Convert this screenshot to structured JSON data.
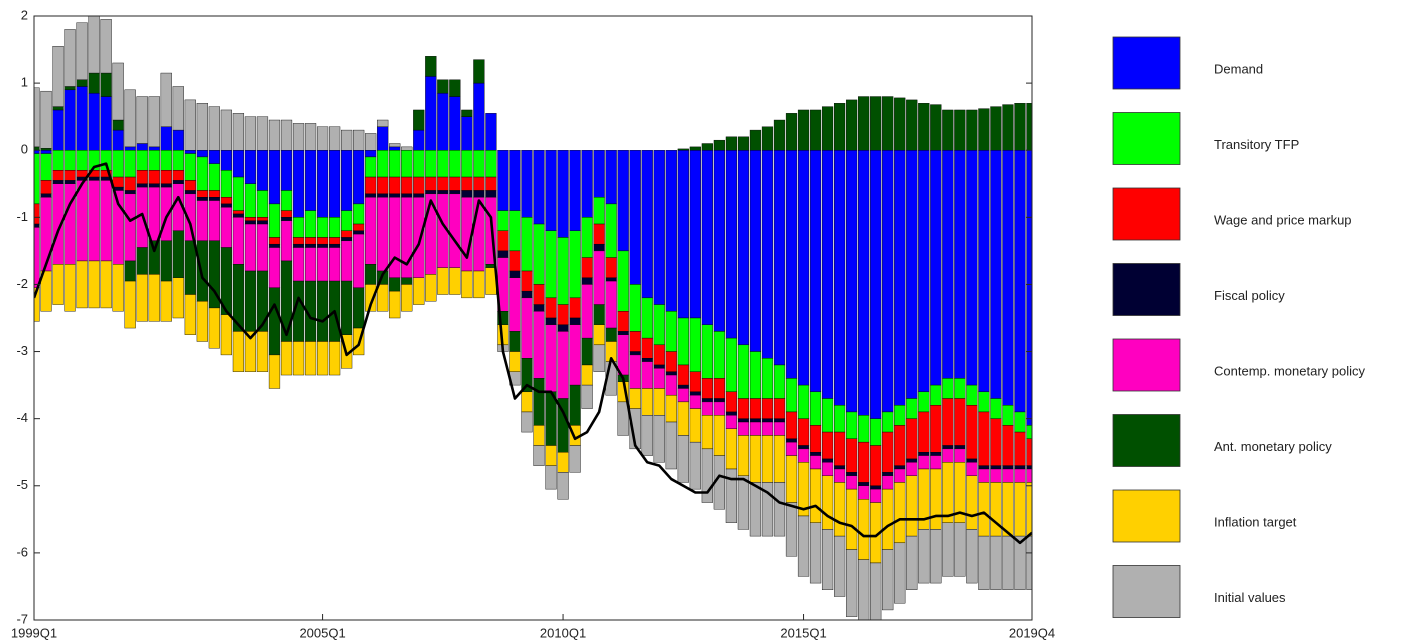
{
  "chart_data": {
    "type": "stacked_bar",
    "categories": [
      "1999Q1",
      null,
      null,
      null,
      null,
      null,
      null,
      null,
      null,
      null,
      null,
      null,
      null,
      null,
      null,
      null,
      null,
      null,
      null,
      null,
      null,
      null,
      null,
      null,
      "2005Q1",
      null,
      null,
      null,
      null,
      null,
      null,
      null,
      null,
      null,
      null,
      null,
      null,
      null,
      null,
      null,
      null,
      null,
      null,
      null,
      "2010Q1",
      null,
      null,
      null,
      null,
      null,
      null,
      null,
      null,
      null,
      null,
      null,
      null,
      null,
      null,
      null,
      null,
      null,
      null,
      null,
      "2015Q1",
      null,
      null,
      null,
      null,
      null,
      null,
      null,
      null,
      null,
      null,
      null,
      null,
      null,
      null,
      null,
      null,
      null,
      null,
      "2019Q4"
    ],
    "series": [
      {
        "name": "Demand",
        "color": "#0000ff",
        "values": [
          -0.05,
          -0.05,
          0.6,
          0.9,
          0.95,
          0.85,
          0.8,
          0.3,
          0.05,
          0.1,
          0.05,
          0.35,
          0.3,
          -0.05,
          -0.1,
          -0.2,
          -0.3,
          -0.4,
          -0.5,
          -0.6,
          -0.8,
          -0.6,
          -1.0,
          -0.9,
          -1.0,
          -1.0,
          -0.9,
          -0.8,
          -0.1,
          0.35,
          0.05,
          0.0,
          0.3,
          1.1,
          0.85,
          0.8,
          0.5,
          1.0,
          0.55,
          -0.9,
          -0.9,
          -1.0,
          -1.1,
          -1.2,
          -1.3,
          -1.2,
          -1.0,
          -0.7,
          -0.8,
          -1.5,
          -2.0,
          -2.2,
          -2.3,
          -2.4,
          -2.5,
          -2.5,
          -2.6,
          -2.7,
          -2.8,
          -2.9,
          -3.0,
          -3.1,
          -3.2,
          -3.4,
          -3.5,
          -3.6,
          -3.7,
          -3.8,
          -3.9,
          -3.95,
          -4.0,
          -3.9,
          -3.8,
          -3.7,
          -3.6,
          -3.5,
          -3.4,
          -3.4,
          -3.5,
          -3.6,
          -3.7,
          -3.8,
          -3.9,
          -4.1
        ]
      },
      {
        "name": "Transitory TFP",
        "color": "#00ff00",
        "values": [
          -0.75,
          -0.4,
          -0.3,
          -0.3,
          -0.3,
          -0.3,
          -0.3,
          -0.4,
          -0.4,
          -0.3,
          -0.3,
          -0.3,
          -0.3,
          -0.4,
          -0.5,
          -0.4,
          -0.4,
          -0.5,
          -0.5,
          -0.4,
          -0.5,
          -0.3,
          -0.3,
          -0.4,
          -0.3,
          -0.3,
          -0.3,
          -0.3,
          -0.3,
          -0.4,
          -0.4,
          -0.4,
          -0.4,
          -0.4,
          -0.4,
          -0.4,
          -0.4,
          -0.4,
          -0.4,
          -0.3,
          -0.6,
          -0.8,
          -0.9,
          -1.0,
          -1.0,
          -1.0,
          -0.6,
          -0.4,
          -0.8,
          -0.9,
          -0.7,
          -0.6,
          -0.6,
          -0.6,
          -0.7,
          -0.8,
          -0.8,
          -0.7,
          -0.8,
          -0.8,
          -0.7,
          -0.6,
          -0.5,
          -0.5,
          -0.5,
          -0.5,
          -0.5,
          -0.4,
          -0.4,
          -0.4,
          -0.4,
          -0.3,
          -0.3,
          -0.3,
          -0.3,
          -0.3,
          -0.3,
          -0.3,
          -0.3,
          -0.3,
          -0.3,
          -0.3,
          -0.3,
          -0.2
        ]
      },
      {
        "name": "Wage and price markup",
        "color": "#ff0000",
        "values": [
          -0.3,
          -0.2,
          -0.15,
          -0.15,
          -0.1,
          -0.1,
          -0.1,
          -0.15,
          -0.2,
          -0.2,
          -0.2,
          -0.2,
          -0.15,
          -0.15,
          -0.1,
          -0.1,
          -0.1,
          -0.05,
          -0.05,
          -0.05,
          -0.1,
          -0.1,
          -0.1,
          -0.1,
          -0.1,
          -0.1,
          -0.1,
          -0.1,
          -0.25,
          -0.25,
          -0.25,
          -0.25,
          -0.25,
          -0.2,
          -0.2,
          -0.2,
          -0.2,
          -0.2,
          -0.2,
          -0.3,
          -0.3,
          -0.3,
          -0.3,
          -0.3,
          -0.3,
          -0.3,
          -0.3,
          -0.3,
          -0.3,
          -0.3,
          -0.3,
          -0.3,
          -0.3,
          -0.3,
          -0.3,
          -0.3,
          -0.3,
          -0.3,
          -0.3,
          -0.3,
          -0.3,
          -0.3,
          -0.3,
          -0.4,
          -0.4,
          -0.4,
          -0.4,
          -0.5,
          -0.5,
          -0.6,
          -0.6,
          -0.6,
          -0.6,
          -0.6,
          -0.6,
          -0.7,
          -0.7,
          -0.7,
          -0.8,
          -0.8,
          -0.7,
          -0.6,
          -0.5,
          -0.4
        ]
      },
      {
        "name": "Fiscal policy",
        "color": "#000033",
        "values": [
          -0.05,
          -0.05,
          -0.05,
          -0.05,
          -0.05,
          -0.05,
          -0.05,
          -0.05,
          -0.05,
          -0.05,
          -0.05,
          -0.05,
          -0.05,
          -0.05,
          -0.05,
          -0.05,
          -0.05,
          -0.05,
          -0.05,
          -0.05,
          -0.05,
          -0.05,
          -0.05,
          -0.05,
          -0.05,
          -0.05,
          -0.05,
          -0.05,
          -0.05,
          -0.05,
          -0.05,
          -0.05,
          -0.05,
          -0.05,
          -0.05,
          -0.05,
          -0.1,
          -0.1,
          -0.1,
          -0.1,
          -0.1,
          -0.1,
          -0.1,
          -0.1,
          -0.1,
          -0.1,
          -0.1,
          -0.1,
          -0.05,
          -0.05,
          -0.05,
          -0.05,
          -0.05,
          -0.05,
          -0.05,
          -0.05,
          -0.05,
          -0.05,
          -0.05,
          -0.05,
          -0.05,
          -0.05,
          -0.05,
          -0.05,
          -0.05,
          -0.05,
          -0.05,
          -0.05,
          -0.05,
          -0.05,
          -0.05,
          -0.05,
          -0.05,
          -0.05,
          -0.05,
          -0.05,
          -0.05,
          -0.05,
          -0.05,
          -0.05,
          -0.05,
          -0.05,
          -0.05,
          -0.05
        ]
      },
      {
        "name": "Contemp. monetary policy",
        "color": "#ff00c0",
        "values": [
          -0.9,
          -1.1,
          -1.2,
          -1.2,
          -1.2,
          -1.2,
          -1.2,
          -1.1,
          -1.0,
          -0.9,
          -0.8,
          -0.8,
          -0.7,
          -0.7,
          -0.6,
          -0.6,
          -0.6,
          -0.7,
          -0.7,
          -0.7,
          -0.6,
          -0.6,
          -0.5,
          -0.5,
          -0.5,
          -0.5,
          -0.6,
          -0.8,
          -1.0,
          -1.1,
          -1.2,
          -1.2,
          -1.2,
          -1.2,
          -1.1,
          -1.1,
          -1.1,
          -1.1,
          -1.0,
          -0.8,
          -0.8,
          -0.9,
          -1.0,
          -1.0,
          -1.0,
          -0.9,
          -0.8,
          -0.8,
          -0.7,
          -0.6,
          -0.5,
          -0.4,
          -0.3,
          -0.3,
          -0.2,
          -0.2,
          -0.2,
          -0.2,
          -0.2,
          -0.2,
          -0.2,
          -0.2,
          -0.2,
          -0.2,
          -0.2,
          -0.2,
          -0.2,
          -0.2,
          -0.2,
          -0.2,
          -0.2,
          -0.2,
          -0.2,
          -0.2,
          -0.2,
          -0.2,
          -0.2,
          -0.2,
          -0.2,
          -0.2,
          -0.2,
          -0.2,
          -0.2,
          -0.2
        ]
      },
      {
        "name": "Ant. monetary policy",
        "color": "#005000",
        "values": [
          0.05,
          0.03,
          0.05,
          0.05,
          0.1,
          0.3,
          0.35,
          0.15,
          -0.3,
          -0.4,
          -0.5,
          -0.6,
          -0.7,
          -0.8,
          -0.9,
          -1.0,
          -1.0,
          -1.0,
          -0.9,
          -0.9,
          -1.0,
          -1.2,
          -0.9,
          -0.9,
          -0.9,
          -0.9,
          -0.8,
          -0.6,
          -0.3,
          -0.2,
          -0.2,
          -0.1,
          0.3,
          0.3,
          0.2,
          0.25,
          0.1,
          0.35,
          -0.05,
          -0.2,
          -0.3,
          -0.5,
          -0.7,
          -0.8,
          -0.8,
          -0.6,
          -0.4,
          -0.3,
          -0.2,
          -0.1,
          0.0,
          0.0,
          0.0,
          0.0,
          0.02,
          0.05,
          0.1,
          0.15,
          0.2,
          0.2,
          0.3,
          0.35,
          0.45,
          0.55,
          0.6,
          0.6,
          0.65,
          0.7,
          0.75,
          0.8,
          0.8,
          0.8,
          0.78,
          0.75,
          0.7,
          0.68,
          0.6,
          0.6,
          0.6,
          0.62,
          0.65,
          0.68,
          0.7,
          0.7
        ]
      },
      {
        "name": "Inflation target",
        "color": "#ffd000",
        "values": [
          -0.5,
          -0.6,
          -0.6,
          -0.7,
          -0.7,
          -0.7,
          -0.7,
          -0.7,
          -0.7,
          -0.7,
          -0.7,
          -0.6,
          -0.6,
          -0.6,
          -0.6,
          -0.6,
          -0.6,
          -0.6,
          -0.6,
          -0.6,
          -0.5,
          -0.5,
          -0.5,
          -0.5,
          -0.5,
          -0.5,
          -0.5,
          -0.4,
          -0.4,
          -0.4,
          -0.4,
          -0.4,
          -0.4,
          -0.4,
          -0.4,
          -0.4,
          -0.4,
          -0.4,
          -0.4,
          -0.3,
          -0.3,
          -0.3,
          -0.3,
          -0.3,
          -0.3,
          -0.3,
          -0.3,
          -0.3,
          -0.3,
          -0.3,
          -0.3,
          -0.4,
          -0.4,
          -0.4,
          -0.5,
          -0.5,
          -0.5,
          -0.6,
          -0.6,
          -0.6,
          -0.7,
          -0.7,
          -0.7,
          -0.7,
          -0.8,
          -0.8,
          -0.8,
          -0.8,
          -0.9,
          -0.9,
          -0.9,
          -0.9,
          -0.9,
          -0.9,
          -0.9,
          -0.9,
          -0.9,
          -0.9,
          -0.8,
          -0.8,
          -0.8,
          -0.8,
          -0.8,
          -0.8
        ]
      },
      {
        "name": "Initial values",
        "color": "#b0b0b0",
        "values": [
          0.88,
          0.85,
          0.9,
          0.85,
          0.85,
          0.85,
          0.8,
          0.85,
          0.85,
          0.7,
          0.75,
          0.8,
          0.65,
          0.75,
          0.7,
          0.65,
          0.6,
          0.55,
          0.5,
          0.5,
          0.45,
          0.45,
          0.4,
          0.4,
          0.35,
          0.35,
          0.3,
          0.3,
          0.25,
          0.1,
          0.05,
          0.05,
          0.0,
          0.0,
          0.0,
          0.0,
          0.0,
          0.0,
          0.0,
          -0.1,
          -0.2,
          -0.3,
          -0.3,
          -0.35,
          -0.4,
          -0.4,
          -0.35,
          -0.4,
          -0.5,
          -0.5,
          -0.6,
          -0.6,
          -0.7,
          -0.7,
          -0.7,
          -0.7,
          -0.8,
          -0.8,
          -0.8,
          -0.8,
          -0.8,
          -0.8,
          -0.8,
          -0.8,
          -0.9,
          -0.9,
          -0.9,
          -0.9,
          -1.0,
          -1.0,
          -1.0,
          -0.9,
          -0.9,
          -0.8,
          -0.8,
          -0.8,
          -0.8,
          -0.8,
          -0.8,
          -0.8,
          -0.8,
          -0.8,
          -0.8,
          -0.8
        ]
      }
    ],
    "line": {
      "color": "#000000",
      "values": [
        -2.2,
        -1.7,
        -1.2,
        -0.8,
        -0.5,
        -0.25,
        -0.2,
        -0.8,
        -1.05,
        -0.95,
        -1.5,
        -1.0,
        -0.7,
        -1.1,
        -1.9,
        -2.1,
        -2.4,
        -2.6,
        -2.8,
        -2.6,
        -2.3,
        -2.75,
        -2.2,
        -2.5,
        -2.55,
        -2.4,
        -3.05,
        -2.9,
        -2.3,
        -1.85,
        -1.6,
        -1.7,
        -1.4,
        -0.75,
        -1.1,
        -1.35,
        -1.6,
        -0.75,
        -1.0,
        -3.0,
        -3.7,
        -3.5,
        -3.6,
        -3.6,
        -3.9,
        -4.3,
        -4.2,
        -3.9,
        -3.1,
        -3.4,
        -4.4,
        -4.65,
        -4.7,
        -4.9,
        -5.0,
        -5.1,
        -5.1,
        -4.85,
        -4.9,
        -4.9,
        -5.0,
        -5.1,
        -5.25,
        -5.3,
        -5.35,
        -5.3,
        -5.45,
        -5.55,
        -5.6,
        -5.75,
        -5.75,
        -5.6,
        -5.5,
        -5.5,
        -5.5,
        -5.45,
        -5.45,
        -5.4,
        -5.45,
        -5.4,
        -5.55,
        -5.7,
        -5.85,
        -5.7
      ]
    },
    "ylim": [
      -7,
      2
    ],
    "yticks": [
      -7,
      -6,
      -5,
      -4,
      -3,
      -2,
      -1,
      0,
      1,
      2
    ]
  }
}
